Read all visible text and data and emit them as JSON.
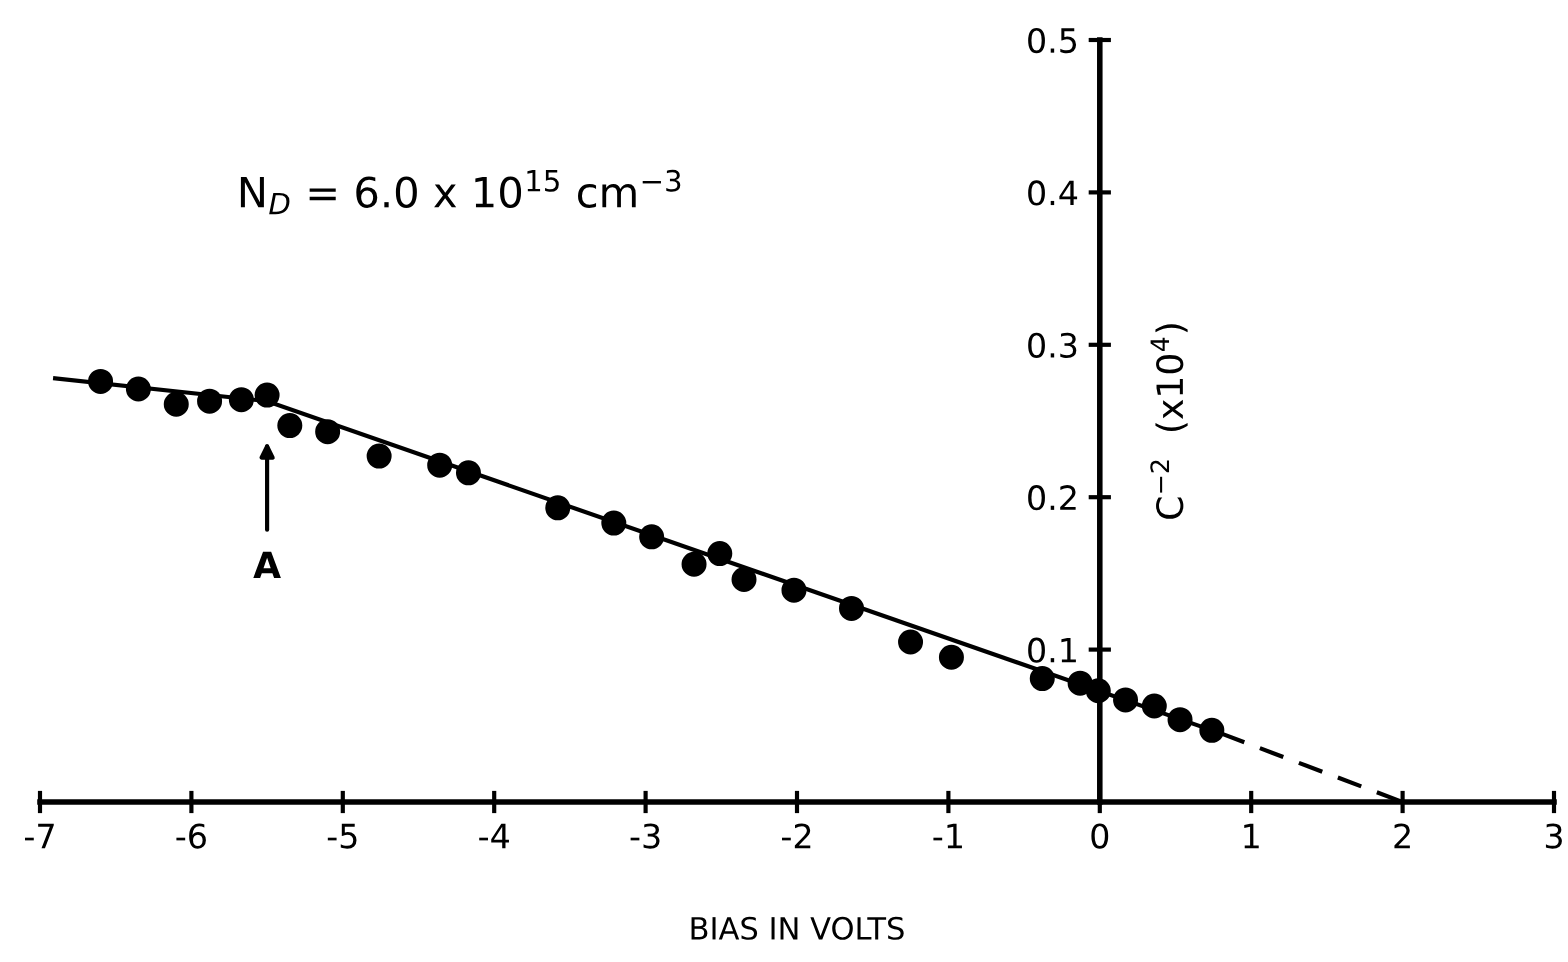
{
  "chart_data": {
    "type": "scatter",
    "xlabel": "BIAS IN VOLTS",
    "ylabel": "C$^{−2}$  (x10$^{4}$)",
    "x": [
      -6.6,
      -6.35,
      -6.1,
      -5.88,
      -5.67,
      -5.5,
      -5.35,
      -5.1,
      -4.76,
      -4.36,
      -4.17,
      -3.58,
      -3.21,
      -2.96,
      -2.68,
      -2.51,
      -2.35,
      -2.02,
      -1.64,
      -1.25,
      -0.98,
      -0.38,
      -0.13,
      -0.01,
      0.17,
      0.36,
      0.53,
      0.74
    ],
    "series": [
      {
        "color": "#000000",
        "marker": "circle",
        "values": [
          0.276,
          0.271,
          0.261,
          0.263,
          0.264,
          0.267,
          0.247,
          0.243,
          0.227,
          0.221,
          0.216,
          0.193,
          0.183,
          0.174,
          0.156,
          0.163,
          0.146,
          0.139,
          0.127,
          0.105,
          0.095,
          0.081,
          0.078,
          0.073,
          0.067,
          0.063,
          0.054,
          0.047
        ]
      },
      {
        "type": "line",
        "color": "#000000",
        "line_style": "solid",
        "x": [
          -6.9,
          -5.5
        ],
        "values": [
          0.278,
          0.263
        ]
      },
      {
        "type": "line",
        "color": "#000000",
        "line_style": "solid",
        "x": [
          -5.5,
          0.8
        ],
        "values": [
          0.263,
          0.045
        ]
      },
      {
        "type": "line",
        "color": "#000000",
        "line_style": "dashed",
        "x": [
          0.8,
          2
        ],
        "values": [
          0.045,
          0
        ]
      }
    ],
    "annotations": [
      "A",
      "N$_{D}$ = 6.0 x 10$^{15}$ cm$^{−3}$"
    ],
    "xlim": [
      -7,
      3
    ],
    "ylim": [
      0,
      0.5
    ],
    "xticks": [
      -7,
      -6,
      -5,
      -4,
      -3,
      -2,
      -1,
      0,
      1,
      2,
      3
    ],
    "yticks": [
      0.1,
      0.2,
      0.3,
      0.4,
      0.5
    ],
    "grid": false,
    "legend": false
  }
}
